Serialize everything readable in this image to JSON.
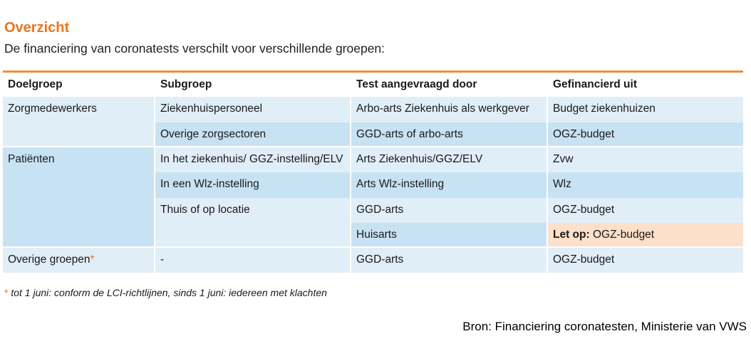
{
  "title": "Overzicht",
  "subtitle": "De financiering van coronatests verschilt voor verschillende groepen:",
  "table": {
    "headers": [
      "Doelgroep",
      "Subgroep",
      "Test aangevraagd door",
      "Gefinancierd uit"
    ],
    "rows": [
      {
        "doelgroep": "Zorgmedewerkers",
        "subgroep": "Ziekenhuispersoneel",
        "test": "Arbo-arts Ziekenhuis als werkgever",
        "financiering": "Budget ziekenhuizen"
      },
      {
        "doelgroep": "",
        "subgroep": "Overige zorgsectoren",
        "test": "GGD-arts of arbo-arts",
        "financiering": "OGZ-budget"
      },
      {
        "doelgroep": "Patiënten",
        "subgroep": "In het ziekenhuis/ GGZ-instelling/ELV",
        "test": "Arts Ziekenhuis/GGZ/ELV",
        "financiering": "Zvw"
      },
      {
        "doelgroep": "",
        "subgroep": "In een Wlz-instelling",
        "test": "Arts Wlz-instelling",
        "financiering": "Wlz"
      },
      {
        "doelgroep": "",
        "subgroep": "Thuis of op locatie",
        "test": "GGD-arts",
        "financiering": "OGZ-budget"
      },
      {
        "doelgroep": "",
        "subgroep": "",
        "test": "Huisarts",
        "financiering_prefix": "Let op:",
        "financiering": " OGZ-budget"
      },
      {
        "doelgroep": "Overige groepen",
        "doelgroep_mark": "*",
        "subgroep": "-",
        "test": "GGD-arts",
        "financiering": "OGZ-budget"
      }
    ]
  },
  "footnote": {
    "mark": "*",
    "text": " tot 1 juni: conform de LCI-richtlijnen, sinds 1 juni: iedereen met klachten"
  },
  "source": "Bron: Financiering coronatesten, Ministerie van VWS",
  "colors": {
    "accent": "#e8761f",
    "row_light": "#e0eef7",
    "row_mid": "#c7e2f3",
    "highlight": "#fce0c9"
  }
}
